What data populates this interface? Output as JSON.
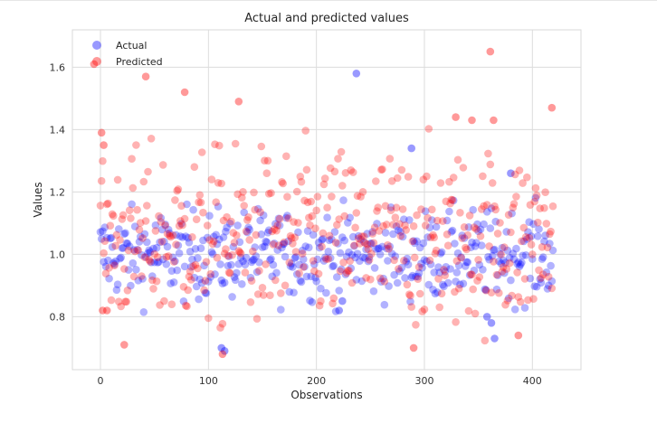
{
  "chart_data": {
    "type": "scatter",
    "title": "Actual and predicted values",
    "xlabel": "Observations",
    "ylabel": "Values",
    "xlim": [
      -26,
      445
    ],
    "ylim": [
      0.63,
      1.72
    ],
    "xticks": [
      0,
      100,
      200,
      300,
      400
    ],
    "yticks": [
      0.8,
      1.0,
      1.2,
      1.4,
      1.6
    ],
    "grid": true,
    "legend_position": "top-left",
    "n_points_per_series": 420,
    "series": [
      {
        "name": "Actual",
        "color": "#0000ff",
        "opacity": 0.3,
        "mean": 1.0,
        "spread": 0.07,
        "notable_points": [
          [
            237,
            1.58
          ],
          [
            288,
            1.34
          ],
          [
            380,
            1.26
          ],
          [
            112,
            0.7
          ],
          [
            115,
            0.69
          ],
          [
            358,
            0.8
          ],
          [
            365,
            0.73
          ],
          [
            362,
            0.78
          ],
          [
            221,
            0.82
          ],
          [
            224,
            0.85
          ]
        ]
      },
      {
        "name": "Predicted",
        "color": "#ff0000",
        "opacity": 0.3,
        "mean": 1.05,
        "spread": 0.14,
        "notable_points": [
          [
            -6,
            1.61
          ],
          [
            42,
            1.57
          ],
          [
            78,
            1.52
          ],
          [
            128,
            1.49
          ],
          [
            361,
            1.65
          ],
          [
            1,
            1.39
          ],
          [
            3,
            1.35
          ],
          [
            418,
            1.47
          ],
          [
            329,
            1.44
          ],
          [
            344,
            1.43
          ],
          [
            364,
            1.43
          ],
          [
            113,
            0.68
          ],
          [
            290,
            0.7
          ],
          [
            22,
            0.71
          ],
          [
            387,
            0.74
          ],
          [
            2,
            0.82
          ],
          [
            6,
            0.82
          ]
        ]
      }
    ]
  }
}
